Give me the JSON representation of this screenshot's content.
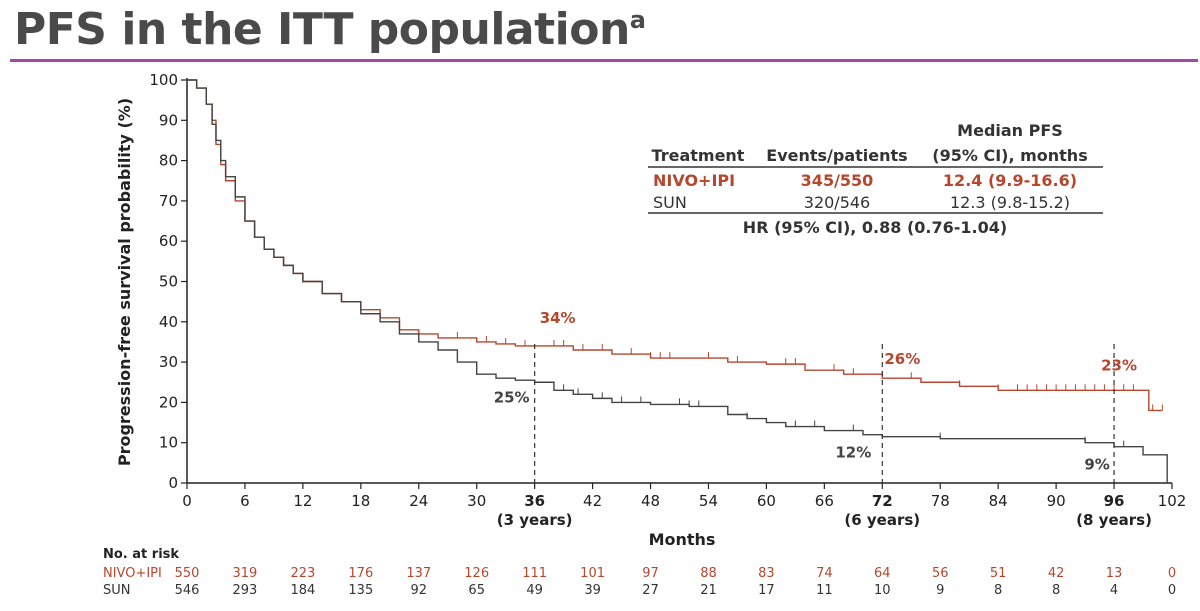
{
  "title": "PFS in the ITT population",
  "title_superscript": "a",
  "colors": {
    "nivo": "#b5472e",
    "sun": "#444444",
    "rule": "#a24aa8"
  },
  "chart_data": {
    "type": "line",
    "ylabel": "Progression-free survival probability (%)",
    "xlabel": "Months",
    "xlim": [
      0,
      102
    ],
    "ylim": [
      0,
      100
    ],
    "xticks": [
      0,
      6,
      12,
      18,
      24,
      30,
      36,
      42,
      48,
      54,
      60,
      66,
      72,
      78,
      84,
      90,
      96,
      102
    ],
    "yticks": [
      0,
      10,
      20,
      30,
      40,
      50,
      60,
      70,
      80,
      90,
      100
    ],
    "bold_xticks": [
      36,
      72,
      96
    ],
    "landmark_labels": [
      {
        "x": 36,
        "text": "(3 years)"
      },
      {
        "x": 72,
        "text": "(6 years)"
      },
      {
        "x": 96,
        "text": "(8 years)"
      }
    ],
    "series": [
      {
        "name": "NIVO+IPI",
        "color": "#b5472e",
        "x": [
          0,
          1,
          2,
          2.6,
          3,
          3.5,
          4,
          5,
          6,
          7,
          8,
          9,
          10,
          11,
          12,
          14,
          16,
          18,
          20,
          22,
          24,
          26,
          28,
          30,
          32,
          34,
          36,
          40,
          44,
          48,
          52,
          56,
          60,
          64,
          68,
          72,
          76,
          80,
          84,
          88,
          92,
          96,
          99,
          99.6,
          101
        ],
        "y": [
          100,
          98,
          94,
          90,
          84,
          79,
          75,
          70,
          65,
          61,
          58,
          56,
          54,
          52,
          50,
          47,
          45,
          43,
          41,
          38,
          37,
          36,
          36,
          35,
          34.5,
          34,
          34,
          33,
          32,
          31,
          31,
          30,
          29.5,
          28,
          27,
          26,
          25,
          24,
          23,
          23,
          23,
          23,
          23,
          18,
          18
        ],
        "censor_x": [
          28,
          31,
          33,
          35,
          38,
          39,
          41,
          43,
          46,
          48,
          49,
          50,
          54,
          57,
          62,
          63,
          67,
          69,
          72,
          75,
          80,
          84,
          86,
          87,
          88,
          89,
          90,
          91,
          92,
          93,
          94,
          95,
          96,
          97,
          98,
          100,
          101
        ]
      },
      {
        "name": "SUN",
        "color": "#444444",
        "x": [
          0,
          1,
          2,
          2.6,
          3,
          3.5,
          4,
          5,
          6,
          7,
          8,
          9,
          10,
          11,
          12,
          14,
          16,
          18,
          20,
          22,
          24,
          26,
          28,
          30,
          32,
          34,
          36,
          38,
          40,
          42,
          44,
          48,
          52,
          56,
          58,
          60,
          62,
          66,
          70,
          72,
          78,
          84,
          90,
          93,
          96,
          99,
          101.5
        ],
        "y": [
          100,
          98,
          94,
          89,
          85,
          80,
          76,
          71,
          65,
          61,
          58,
          56,
          54,
          52,
          50,
          47,
          45,
          42,
          40,
          37,
          35,
          33,
          30,
          27,
          26,
          25.5,
          25,
          23,
          22,
          21,
          20,
          19.5,
          19,
          17,
          16,
          15,
          14,
          13,
          12,
          11.5,
          11,
          11,
          11,
          10,
          9,
          7,
          0
        ],
        "censor_x": [
          39,
          40.5,
          43,
          45,
          47,
          51,
          52,
          53,
          58,
          63,
          65,
          69,
          78,
          93,
          97
        ]
      }
    ],
    "annotations": [
      {
        "x": 36,
        "y": 34,
        "text": "34%",
        "series": "NIVO+IPI"
      },
      {
        "x": 72,
        "y": 26,
        "text": "26%",
        "series": "NIVO+IPI"
      },
      {
        "x": 96,
        "y": 23,
        "text": "23%",
        "series": "NIVO+IPI"
      },
      {
        "x": 36,
        "y": 25,
        "text": "25%",
        "series": "SUN"
      },
      {
        "x": 72,
        "y": 12,
        "text": "12%",
        "series": "SUN"
      },
      {
        "x": 96,
        "y": 9,
        "text": "9%",
        "series": "SUN"
      }
    ]
  },
  "table": {
    "header_treatment": "Treatment",
    "header_events": "Events/patients",
    "header_median_line1": "Median PFS",
    "header_median_line2": "(95% CI), months",
    "rows": [
      {
        "treatment": "NIVO+IPI",
        "events": "345/550",
        "median": "12.4 (9.9-16.6)"
      },
      {
        "treatment": "SUN",
        "events": "320/546",
        "median": "12.3 (9.8-15.2)"
      }
    ],
    "hr": "HR (95% CI), 0.88 (0.76-1.04)"
  },
  "risk_table": {
    "label": "No. at risk",
    "rows": [
      {
        "name": "NIVO+IPI",
        "values": [
          "550",
          "319",
          "223",
          "176",
          "137",
          "126",
          "111",
          "101",
          "97",
          "88",
          "83",
          "74",
          "64",
          "56",
          "51",
          "42",
          "13",
          "0"
        ]
      },
      {
        "name": "SUN",
        "values": [
          "546",
          "293",
          "184",
          "135",
          "92",
          "65",
          "49",
          "39",
          "27",
          "21",
          "17",
          "11",
          "10",
          "9",
          "8",
          "8",
          "4",
          "0"
        ]
      }
    ]
  }
}
